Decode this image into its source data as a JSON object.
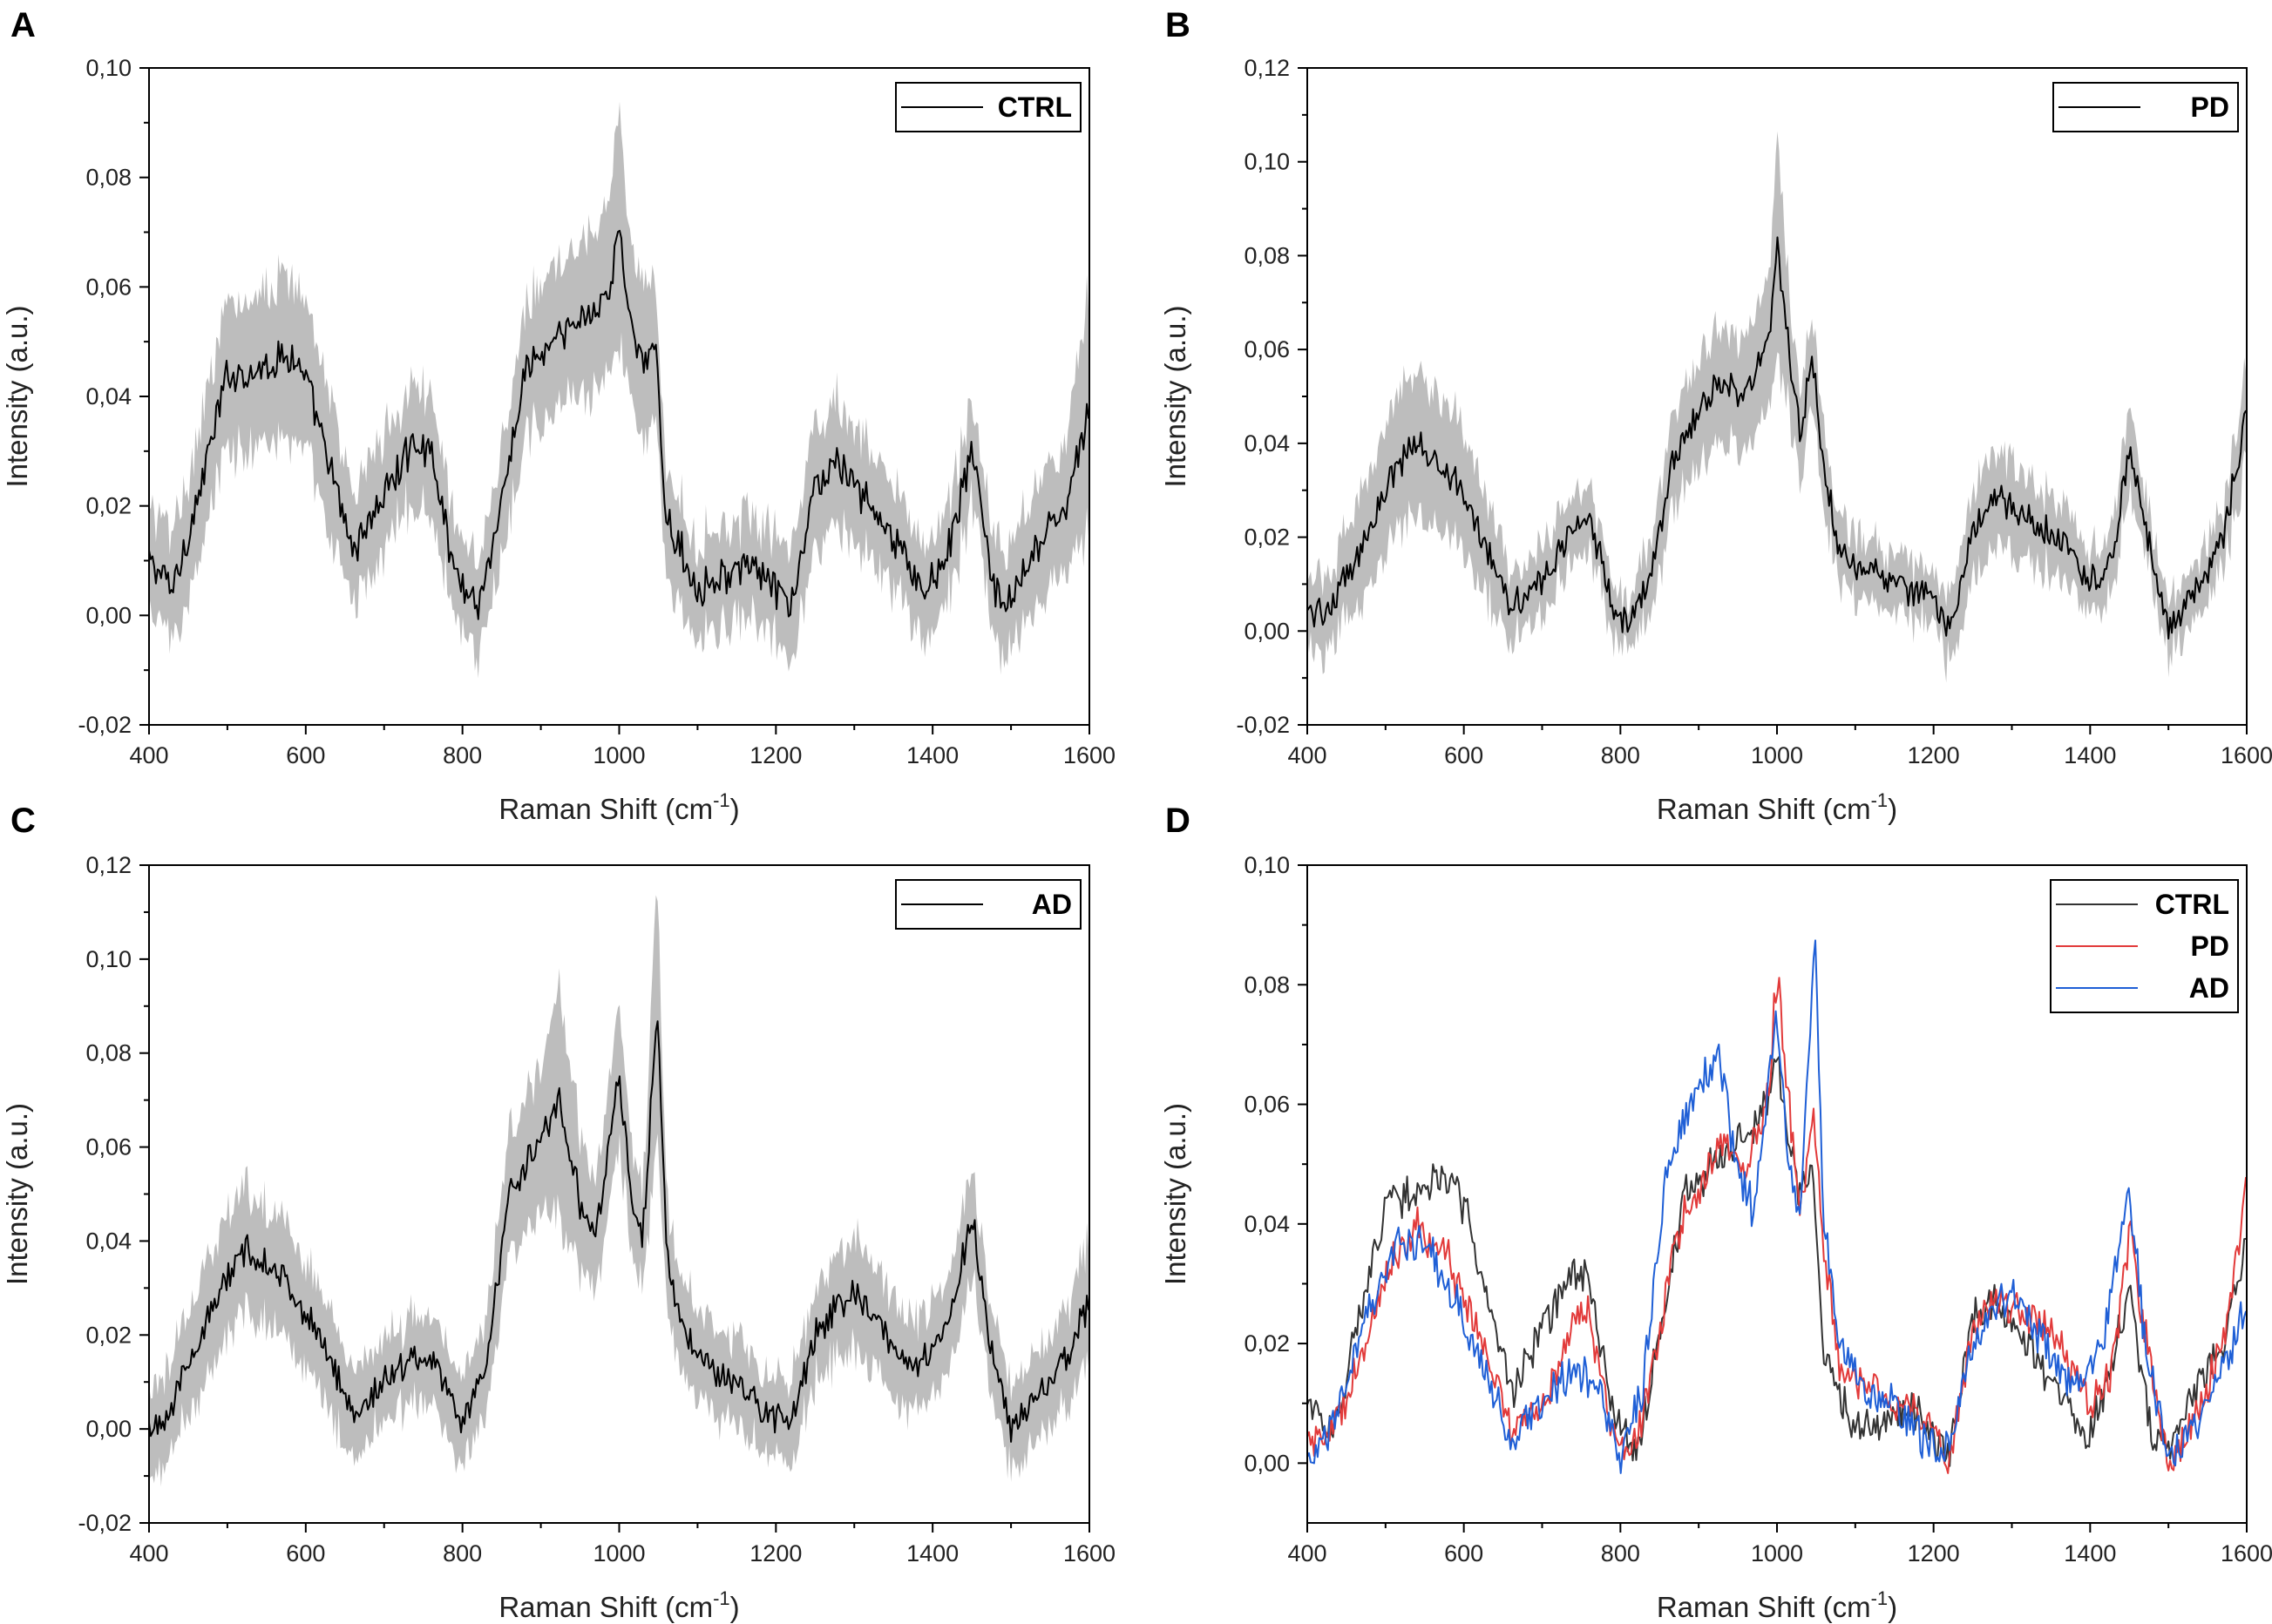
{
  "chart_data": [
    {
      "panel": "A",
      "type": "line",
      "xlabel": "Raman Shift (cm",
      "xlabel_sup": "-1",
      "xlabel_end": ")",
      "ylabel": "Intensity (a.u.)",
      "xlim": [
        400,
        1600
      ],
      "ylim": [
        -0.02,
        0.1
      ],
      "xticks": [
        400,
        600,
        800,
        1000,
        1200,
        1400,
        1600
      ],
      "xtick_labels": [
        "400",
        "600",
        "800",
        "1000",
        "1200",
        "1400",
        "1600"
      ],
      "yticks": [
        -0.02,
        0.0,
        0.02,
        0.04,
        0.06,
        0.08,
        0.1
      ],
      "ytick_labels": [
        "-0,02",
        "0,00",
        "0,02",
        "0,04",
        "0,06",
        "0,08",
        "0,10"
      ],
      "band": true,
      "band_color": "#bdbdbd",
      "series": [
        {
          "name": "CTRL",
          "color": "#000000",
          "x": [
            400,
            430,
            460,
            500,
            540,
            580,
            600,
            640,
            660,
            700,
            740,
            760,
            790,
            820,
            850,
            880,
            920,
            960,
            990,
            1000,
            1010,
            1030,
            1045,
            1060,
            1100,
            1140,
            1180,
            1220,
            1250,
            1280,
            1310,
            1350,
            1390,
            1420,
            1450,
            1480,
            1500,
            1540,
            1570,
            1600
          ],
          "values": [
            0.01,
            0.005,
            0.02,
            0.044,
            0.045,
            0.048,
            0.043,
            0.022,
            0.012,
            0.022,
            0.032,
            0.03,
            0.008,
            0.002,
            0.02,
            0.045,
            0.05,
            0.055,
            0.06,
            0.071,
            0.058,
            0.045,
            0.05,
            0.018,
            0.005,
            0.008,
            0.008,
            0.001,
            0.024,
            0.028,
            0.022,
            0.014,
            0.004,
            0.012,
            0.03,
            0.004,
            0.002,
            0.014,
            0.02,
            0.037
          ],
          "band_halfwidth": [
            0.01,
            0.01,
            0.011,
            0.013,
            0.014,
            0.015,
            0.014,
            0.012,
            0.01,
            0.01,
            0.011,
            0.011,
            0.009,
            0.009,
            0.01,
            0.012,
            0.013,
            0.014,
            0.016,
            0.022,
            0.015,
            0.013,
            0.012,
            0.01,
            0.009,
            0.009,
            0.009,
            0.01,
            0.011,
            0.011,
            0.01,
            0.009,
            0.009,
            0.009,
            0.009,
            0.009,
            0.01,
            0.011,
            0.012,
            0.022
          ]
        }
      ],
      "legend_placement": "top-right"
    },
    {
      "panel": "B",
      "type": "line",
      "xlabel": "Raman Shift (cm",
      "xlabel_sup": "-1",
      "xlabel_end": ")",
      "ylabel": "Intensity (a.u.)",
      "xlim": [
        400,
        1600
      ],
      "ylim": [
        -0.02,
        0.12
      ],
      "xticks": [
        400,
        600,
        800,
        1000,
        1200,
        1400,
        1600
      ],
      "xtick_labels": [
        "400",
        "600",
        "800",
        "1000",
        "1200",
        "1400",
        "1600"
      ],
      "yticks": [
        -0.02,
        0.0,
        0.02,
        0.04,
        0.06,
        0.08,
        0.1,
        0.12
      ],
      "ytick_labels": [
        "-0,02",
        "0,00",
        "0,02",
        "0,04",
        "0,06",
        "0,08",
        "0,10",
        "0,12"
      ],
      "band": true,
      "band_color": "#bdbdbd",
      "series": [
        {
          "name": "PD",
          "color": "#000000",
          "x": [
            400,
            430,
            470,
            510,
            540,
            580,
            620,
            660,
            700,
            740,
            760,
            790,
            810,
            840,
            870,
            900,
            930,
            960,
            990,
            1000,
            1015,
            1030,
            1045,
            1060,
            1080,
            1120,
            1160,
            1200,
            1220,
            1250,
            1280,
            1320,
            1360,
            1400,
            1430,
            1450,
            1470,
            1500,
            1540,
            1570,
            1600
          ],
          "values": [
            0.004,
            0.005,
            0.018,
            0.034,
            0.04,
            0.034,
            0.022,
            0.006,
            0.01,
            0.022,
            0.025,
            0.005,
            0.0,
            0.014,
            0.038,
            0.046,
            0.054,
            0.05,
            0.062,
            0.083,
            0.06,
            0.042,
            0.059,
            0.035,
            0.016,
            0.013,
            0.009,
            0.007,
            0.0,
            0.022,
            0.028,
            0.024,
            0.02,
            0.01,
            0.016,
            0.039,
            0.022,
            0.0,
            0.01,
            0.02,
            0.046
          ],
          "band_halfwidth": [
            0.008,
            0.008,
            0.012,
            0.014,
            0.015,
            0.014,
            0.012,
            0.007,
            0.007,
            0.007,
            0.007,
            0.006,
            0.006,
            0.008,
            0.01,
            0.011,
            0.013,
            0.012,
            0.014,
            0.025,
            0.012,
            0.011,
            0.009,
            0.008,
            0.007,
            0.006,
            0.006,
            0.006,
            0.008,
            0.009,
            0.01,
            0.009,
            0.008,
            0.007,
            0.007,
            0.009,
            0.007,
            0.006,
            0.006,
            0.007,
            0.01
          ]
        }
      ],
      "legend_placement": "top-right"
    },
    {
      "panel": "C",
      "type": "line",
      "xlabel": "Raman Shift (cm",
      "xlabel_sup": "-1",
      "xlabel_end": ")",
      "ylabel": "Intensity (a.u.)",
      "xlim": [
        400,
        1600
      ],
      "ylim": [
        -0.02,
        0.12
      ],
      "xticks": [
        400,
        600,
        800,
        1000,
        1200,
        1400,
        1600
      ],
      "xtick_labels": [
        "400",
        "600",
        "800",
        "1000",
        "1200",
        "1400",
        "1600"
      ],
      "yticks": [
        -0.02,
        0.0,
        0.02,
        0.04,
        0.06,
        0.08,
        0.1,
        0.12
      ],
      "ytick_labels": [
        "-0,02",
        "0,00",
        "0,02",
        "0,04",
        "0,06",
        "0,08",
        "0,10",
        "0,12"
      ],
      "band": true,
      "band_color": "#bdbdbd",
      "series": [
        {
          "name": "AD",
          "color": "#000000",
          "x": [
            400,
            430,
            470,
            520,
            560,
            600,
            640,
            660,
            700,
            740,
            770,
            800,
            830,
            860,
            900,
            925,
            950,
            970,
            1000,
            1015,
            1030,
            1048,
            1060,
            1080,
            1120,
            1160,
            1200,
            1220,
            1250,
            1300,
            1340,
            1380,
            1420,
            1450,
            1470,
            1500,
            1540,
            1570,
            1600
          ],
          "values": [
            0.0,
            0.005,
            0.022,
            0.038,
            0.035,
            0.024,
            0.012,
            0.003,
            0.01,
            0.016,
            0.013,
            0.001,
            0.014,
            0.05,
            0.062,
            0.07,
            0.048,
            0.042,
            0.075,
            0.05,
            0.04,
            0.09,
            0.04,
            0.02,
            0.012,
            0.008,
            0.002,
            0.003,
            0.02,
            0.03,
            0.02,
            0.012,
            0.022,
            0.046,
            0.02,
            0.0,
            0.008,
            0.015,
            0.027
          ],
          "band_halfwidth": [
            0.01,
            0.01,
            0.012,
            0.013,
            0.012,
            0.011,
            0.01,
            0.009,
            0.009,
            0.009,
            0.009,
            0.009,
            0.01,
            0.013,
            0.015,
            0.025,
            0.014,
            0.012,
            0.015,
            0.012,
            0.01,
            0.028,
            0.012,
            0.01,
            0.009,
            0.009,
            0.009,
            0.009,
            0.01,
            0.012,
            0.011,
            0.01,
            0.01,
            0.012,
            0.009,
            0.009,
            0.009,
            0.01,
            0.014
          ]
        }
      ],
      "legend_placement": "top-right"
    },
    {
      "panel": "D",
      "type": "line",
      "xlabel": "Raman Shift (cm",
      "xlabel_sup": "-1",
      "xlabel_end": ")",
      "ylabel": "Intensity (a.u.)",
      "xlim": [
        400,
        1600
      ],
      "ylim": [
        -0.01,
        0.1
      ],
      "xticks": [
        400,
        600,
        800,
        1000,
        1200,
        1400,
        1600
      ],
      "xtick_labels": [
        "400",
        "600",
        "800",
        "1000",
        "1200",
        "1400",
        "1600"
      ],
      "yticks": [
        0.0,
        0.02,
        0.04,
        0.06,
        0.08,
        0.1
      ],
      "ytick_labels": [
        "0,00",
        "0,02",
        "0,04",
        "0,06",
        "0,08",
        "0,10"
      ],
      "band": false,
      "series": [
        {
          "name": "CTRL",
          "color": "#333333",
          "x": [
            400,
            430,
            460,
            500,
            540,
            580,
            600,
            640,
            660,
            700,
            740,
            760,
            790,
            820,
            850,
            880,
            920,
            960,
            990,
            1000,
            1010,
            1030,
            1045,
            1060,
            1100,
            1140,
            1180,
            1220,
            1250,
            1280,
            1310,
            1350,
            1390,
            1420,
            1450,
            1480,
            1500,
            1540,
            1570,
            1600
          ],
          "values": [
            0.01,
            0.005,
            0.02,
            0.044,
            0.045,
            0.048,
            0.043,
            0.022,
            0.012,
            0.022,
            0.032,
            0.03,
            0.008,
            0.002,
            0.02,
            0.045,
            0.05,
            0.055,
            0.06,
            0.071,
            0.058,
            0.045,
            0.05,
            0.018,
            0.005,
            0.008,
            0.008,
            0.001,
            0.024,
            0.028,
            0.022,
            0.014,
            0.004,
            0.012,
            0.03,
            0.004,
            0.002,
            0.014,
            0.02,
            0.037
          ]
        },
        {
          "name": "PD",
          "color": "#e23a3a",
          "x": [
            400,
            430,
            470,
            510,
            540,
            580,
            620,
            660,
            700,
            740,
            760,
            790,
            810,
            840,
            870,
            900,
            930,
            960,
            990,
            1000,
            1015,
            1030,
            1045,
            1060,
            1080,
            1120,
            1160,
            1200,
            1220,
            1250,
            1280,
            1320,
            1360,
            1400,
            1430,
            1450,
            1470,
            1500,
            1540,
            1570,
            1600
          ],
          "values": [
            0.004,
            0.005,
            0.018,
            0.034,
            0.04,
            0.034,
            0.022,
            0.006,
            0.01,
            0.022,
            0.025,
            0.005,
            0.0,
            0.014,
            0.038,
            0.046,
            0.054,
            0.05,
            0.062,
            0.083,
            0.06,
            0.042,
            0.059,
            0.035,
            0.016,
            0.013,
            0.009,
            0.007,
            0.0,
            0.022,
            0.028,
            0.024,
            0.02,
            0.01,
            0.016,
            0.039,
            0.022,
            0.0,
            0.01,
            0.02,
            0.046
          ]
        },
        {
          "name": "AD",
          "color": "#1f5fd6",
          "x": [
            400,
            430,
            470,
            520,
            560,
            600,
            640,
            660,
            700,
            740,
            770,
            800,
            830,
            860,
            900,
            925,
            950,
            970,
            1000,
            1015,
            1030,
            1048,
            1060,
            1080,
            1120,
            1160,
            1200,
            1220,
            1250,
            1300,
            1340,
            1380,
            1420,
            1450,
            1470,
            1500,
            1540,
            1570,
            1600
          ],
          "values": [
            0.0,
            0.005,
            0.022,
            0.038,
            0.035,
            0.024,
            0.012,
            0.003,
            0.01,
            0.016,
            0.013,
            0.001,
            0.014,
            0.05,
            0.062,
            0.07,
            0.048,
            0.042,
            0.075,
            0.05,
            0.04,
            0.09,
            0.04,
            0.02,
            0.012,
            0.008,
            0.002,
            0.003,
            0.02,
            0.03,
            0.02,
            0.012,
            0.022,
            0.046,
            0.02,
            0.0,
            0.008,
            0.015,
            0.027
          ]
        }
      ],
      "legend_placement": "top-right"
    }
  ]
}
